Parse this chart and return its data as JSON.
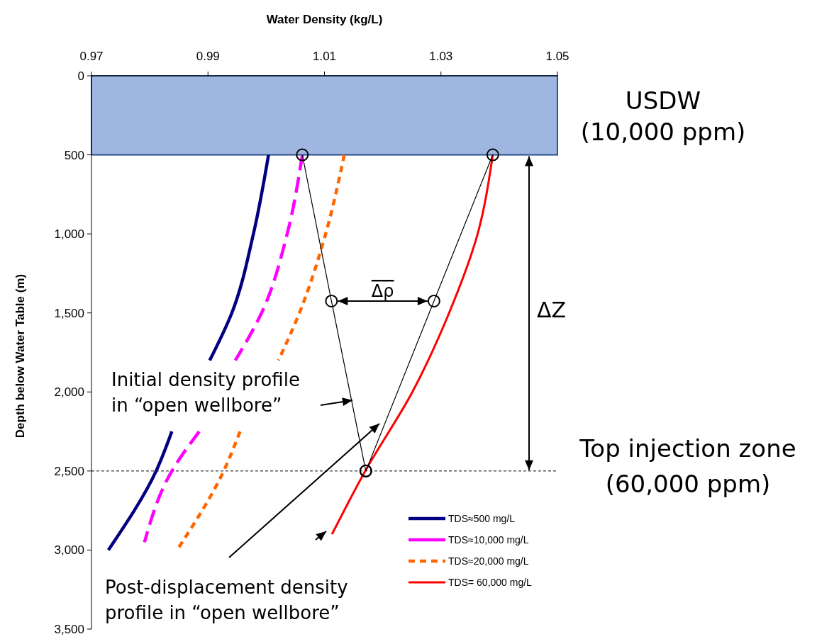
{
  "chart_data": {
    "type": "line",
    "xlabel": "Water Density (kg/L)",
    "ylabel": "Depth below Water Table (m)",
    "xlim": [
      0.97,
      1.05
    ],
    "xticks": [
      0.97,
      0.99,
      1.01,
      1.03,
      1.05
    ],
    "ylim": [
      3500,
      0
    ],
    "yticks": [
      0,
      500,
      {
        "value": 1000,
        "label": "1,000"
      },
      {
        "value": 1500,
        "label": "1,500"
      },
      {
        "value": 2000,
        "label": "2,000"
      },
      {
        "value": 2500,
        "label": "2,500"
      },
      {
        "value": 3000,
        "label": "3,000"
      },
      {
        "value": 3500,
        "label": "3,500"
      }
    ],
    "grid": false,
    "legend": "bottom right",
    "series": [
      {
        "name": "TDS≈500 mg/L",
        "color": "#000080",
        "line_style": "solid",
        "x": [
          1.0004,
          0.9978,
          0.9941,
          0.9903,
          null,
          0.9838,
          0.9811,
          0.9729
        ],
        "values": [
          500,
          1000,
          1500,
          1800,
          null,
          2250,
          2500,
          3000
        ]
      },
      {
        "name": "TDS≈10,000 mg/L",
        "color": "#ff00ff",
        "line_style": "dashed",
        "x": [
          1.0062,
          1.0036,
          0.9992,
          0.9947,
          null,
          0.9885,
          0.9838,
          0.9791
        ],
        "values": [
          500,
          1000,
          1500,
          1800,
          null,
          2250,
          2500,
          2950
        ]
      },
      {
        "name": "TDS≈20,000 mg/L",
        "color": "#ff6600",
        "line_style": "dotted",
        "x": [
          1.0134,
          1.0102,
          1.0057,
          1.0021,
          null,
          0.9955,
          0.9927,
          0.9847
        ],
        "values": [
          500,
          1000,
          1500,
          1800,
          null,
          2250,
          2500,
          3000
        ]
      },
      {
        "name": "TDS= 60,000 mg/L",
        "color": "#ff0000",
        "line_style": "solid",
        "x": [
          1.0389,
          1.0363,
          1.0314,
          1.0251,
          1.017,
          1.0113
        ],
        "values": [
          500,
          1000,
          1500,
          2000,
          2500,
          2900
        ]
      },
      {
        "color": "#000000",
        "line_style": "solid",
        "marker": "circle",
        "x": [
          1.0062,
          1.0112,
          1.0171
        ],
        "values": [
          500,
          1425,
          2500
        ]
      },
      {
        "color": "#000000",
        "line_style": "solid",
        "marker": "circle",
        "x": [
          1.0389,
          1.0288,
          1.0171
        ],
        "values": [
          500,
          1425,
          2500
        ]
      }
    ],
    "bands": [
      {
        "axis": "y",
        "from": 0,
        "to": 500,
        "label": "USDW (10,000 ppm)",
        "color": "#9fb6e0"
      }
    ],
    "ref_lines": [
      {
        "axis": "y",
        "value": 2500,
        "label": "Top injection zone (60,000 ppm)",
        "line_style": "dashed",
        "color": "#000000"
      }
    ],
    "annotations": [
      "Δρ",
      "ΔZ",
      "Initial density profile in “open wellbore”",
      "Post-displacement density profile in “open wellbore”"
    ]
  }
}
